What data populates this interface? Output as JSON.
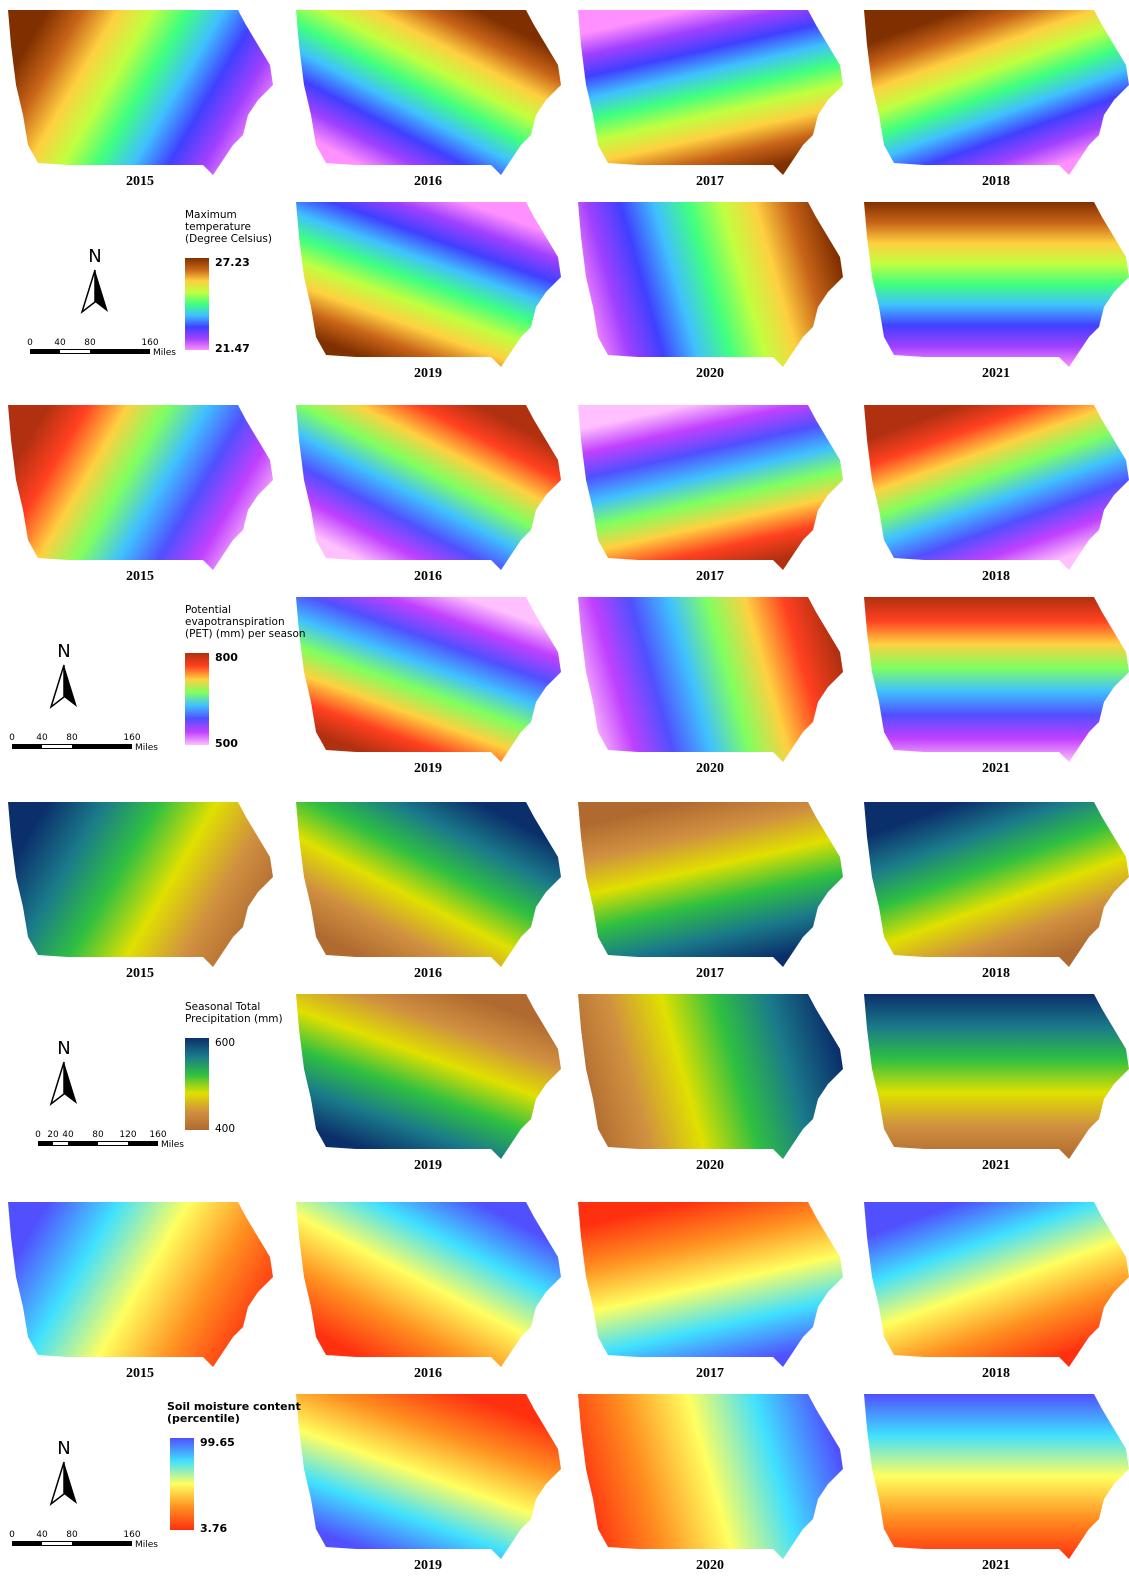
{
  "panels": [
    {
      "legend": {
        "title": [
          "Maximum",
          "temperature",
          "(Degree Celsius)"
        ],
        "max": "27.23",
        "min": "21.47"
      },
      "north": "N",
      "scale": {
        "ticks": [
          "0",
          "40",
          "80",
          "160"
        ],
        "unit": "Miles"
      },
      "maps": [
        "2015",
        "2016",
        "2017",
        "2018",
        "2019",
        "2020",
        "2021"
      ]
    },
    {
      "legend": {
        "title": [
          "Potential",
          "evapotranspiration",
          "(PET) (mm) per season"
        ],
        "max": "800",
        "min": "500"
      },
      "north": "N",
      "scale": {
        "ticks": [
          "0",
          "40",
          "80",
          "160"
        ],
        "unit": "Miles"
      },
      "maps": [
        "2015",
        "2016",
        "2017",
        "2018",
        "2019",
        "2020",
        "2021"
      ]
    },
    {
      "legend": {
        "title": [
          "Seasonal Total",
          "Precipitation (mm)"
        ],
        "max": "600",
        "min": "400"
      },
      "north": "N",
      "scale": {
        "ticks": [
          "0",
          "20",
          "40",
          "80",
          "120",
          "160"
        ],
        "unit": "Miles"
      },
      "maps": [
        "2015",
        "2016",
        "2017",
        "2018",
        "2019",
        "2020",
        "2021"
      ]
    },
    {
      "legend": {
        "title": [
          "Soil moisture content",
          "(percentile)"
        ],
        "max": "99.65",
        "min": "3.76"
      },
      "north": "N",
      "scale": {
        "ticks": [
          "0",
          "40",
          "80",
          "160"
        ],
        "unit": "Miles"
      },
      "maps": [
        "2015",
        "2016",
        "2017",
        "2018",
        "2019",
        "2020",
        "2021"
      ]
    }
  ]
}
